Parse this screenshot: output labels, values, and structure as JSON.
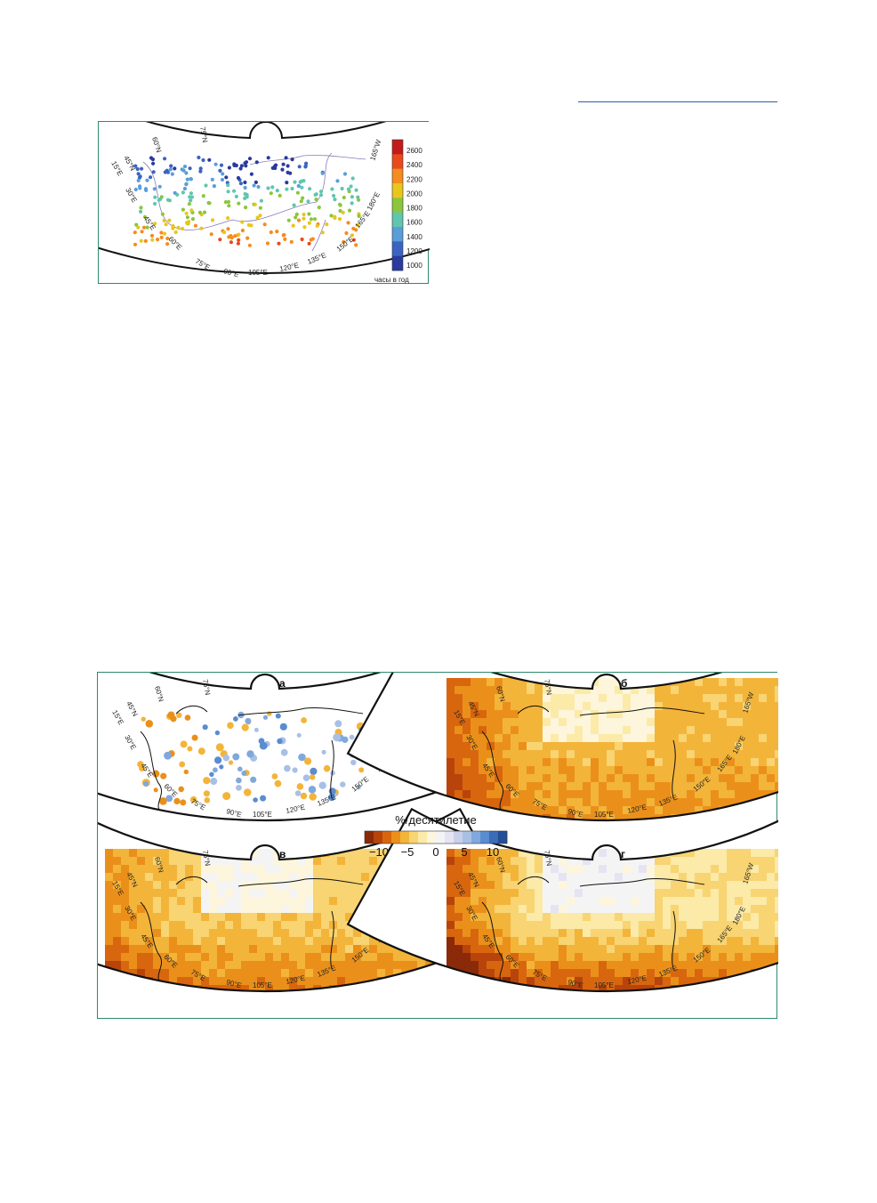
{
  "figure1": {
    "colorbar_ticks": [
      "2600",
      "2400",
      "2200",
      "2000",
      "1800",
      "1600",
      "1400",
      "1200",
      "1000"
    ],
    "colorbar_colors": [
      "#c41a1a",
      "#e84a1c",
      "#f58c1e",
      "#e8c61c",
      "#8cc63c",
      "#5fc6b0",
      "#5a9ed8",
      "#3a64c0",
      "#2a3a9e"
    ],
    "colorbar_unit": "часы в год",
    "lon_labels": [
      "15°E",
      "30°E",
      "45°E",
      "60°E",
      "75°E",
      "90°E",
      "105°E",
      "120°E",
      "135°E",
      "150°E",
      "165°E",
      "180°E",
      "165°W"
    ],
    "lat_labels": [
      "45°N",
      "60°N",
      "75°N"
    ]
  },
  "figure2": {
    "panels": [
      {
        "letter": "а"
      },
      {
        "letter": "б"
      },
      {
        "letter": "в"
      },
      {
        "letter": "г"
      }
    ],
    "colorbar_title": "%/десятилетие",
    "colorbar_ticks": [
      "−10",
      "−5",
      "0",
      "5",
      "10"
    ],
    "colorbar_colors": [
      "#8a2a08",
      "#b8440c",
      "#d8660e",
      "#ea901a",
      "#f3b43a",
      "#f8d472",
      "#fbeaa8",
      "#fdf6dc",
      "#f4f4f4",
      "#e6e4f2",
      "#c8d0ea",
      "#a8c0e6",
      "#80a8dc",
      "#5a8cd0",
      "#3a6cb8",
      "#234e98"
    ],
    "lon_labels": [
      "15°E",
      "30°E",
      "45°E",
      "60°E",
      "75°E",
      "90°E",
      "105°E",
      "120°E",
      "135°E",
      "150°E",
      "165°E",
      "180°E",
      "165°W"
    ],
    "lat_labels": [
      "45°N",
      "60°N",
      "75°N"
    ]
  }
}
